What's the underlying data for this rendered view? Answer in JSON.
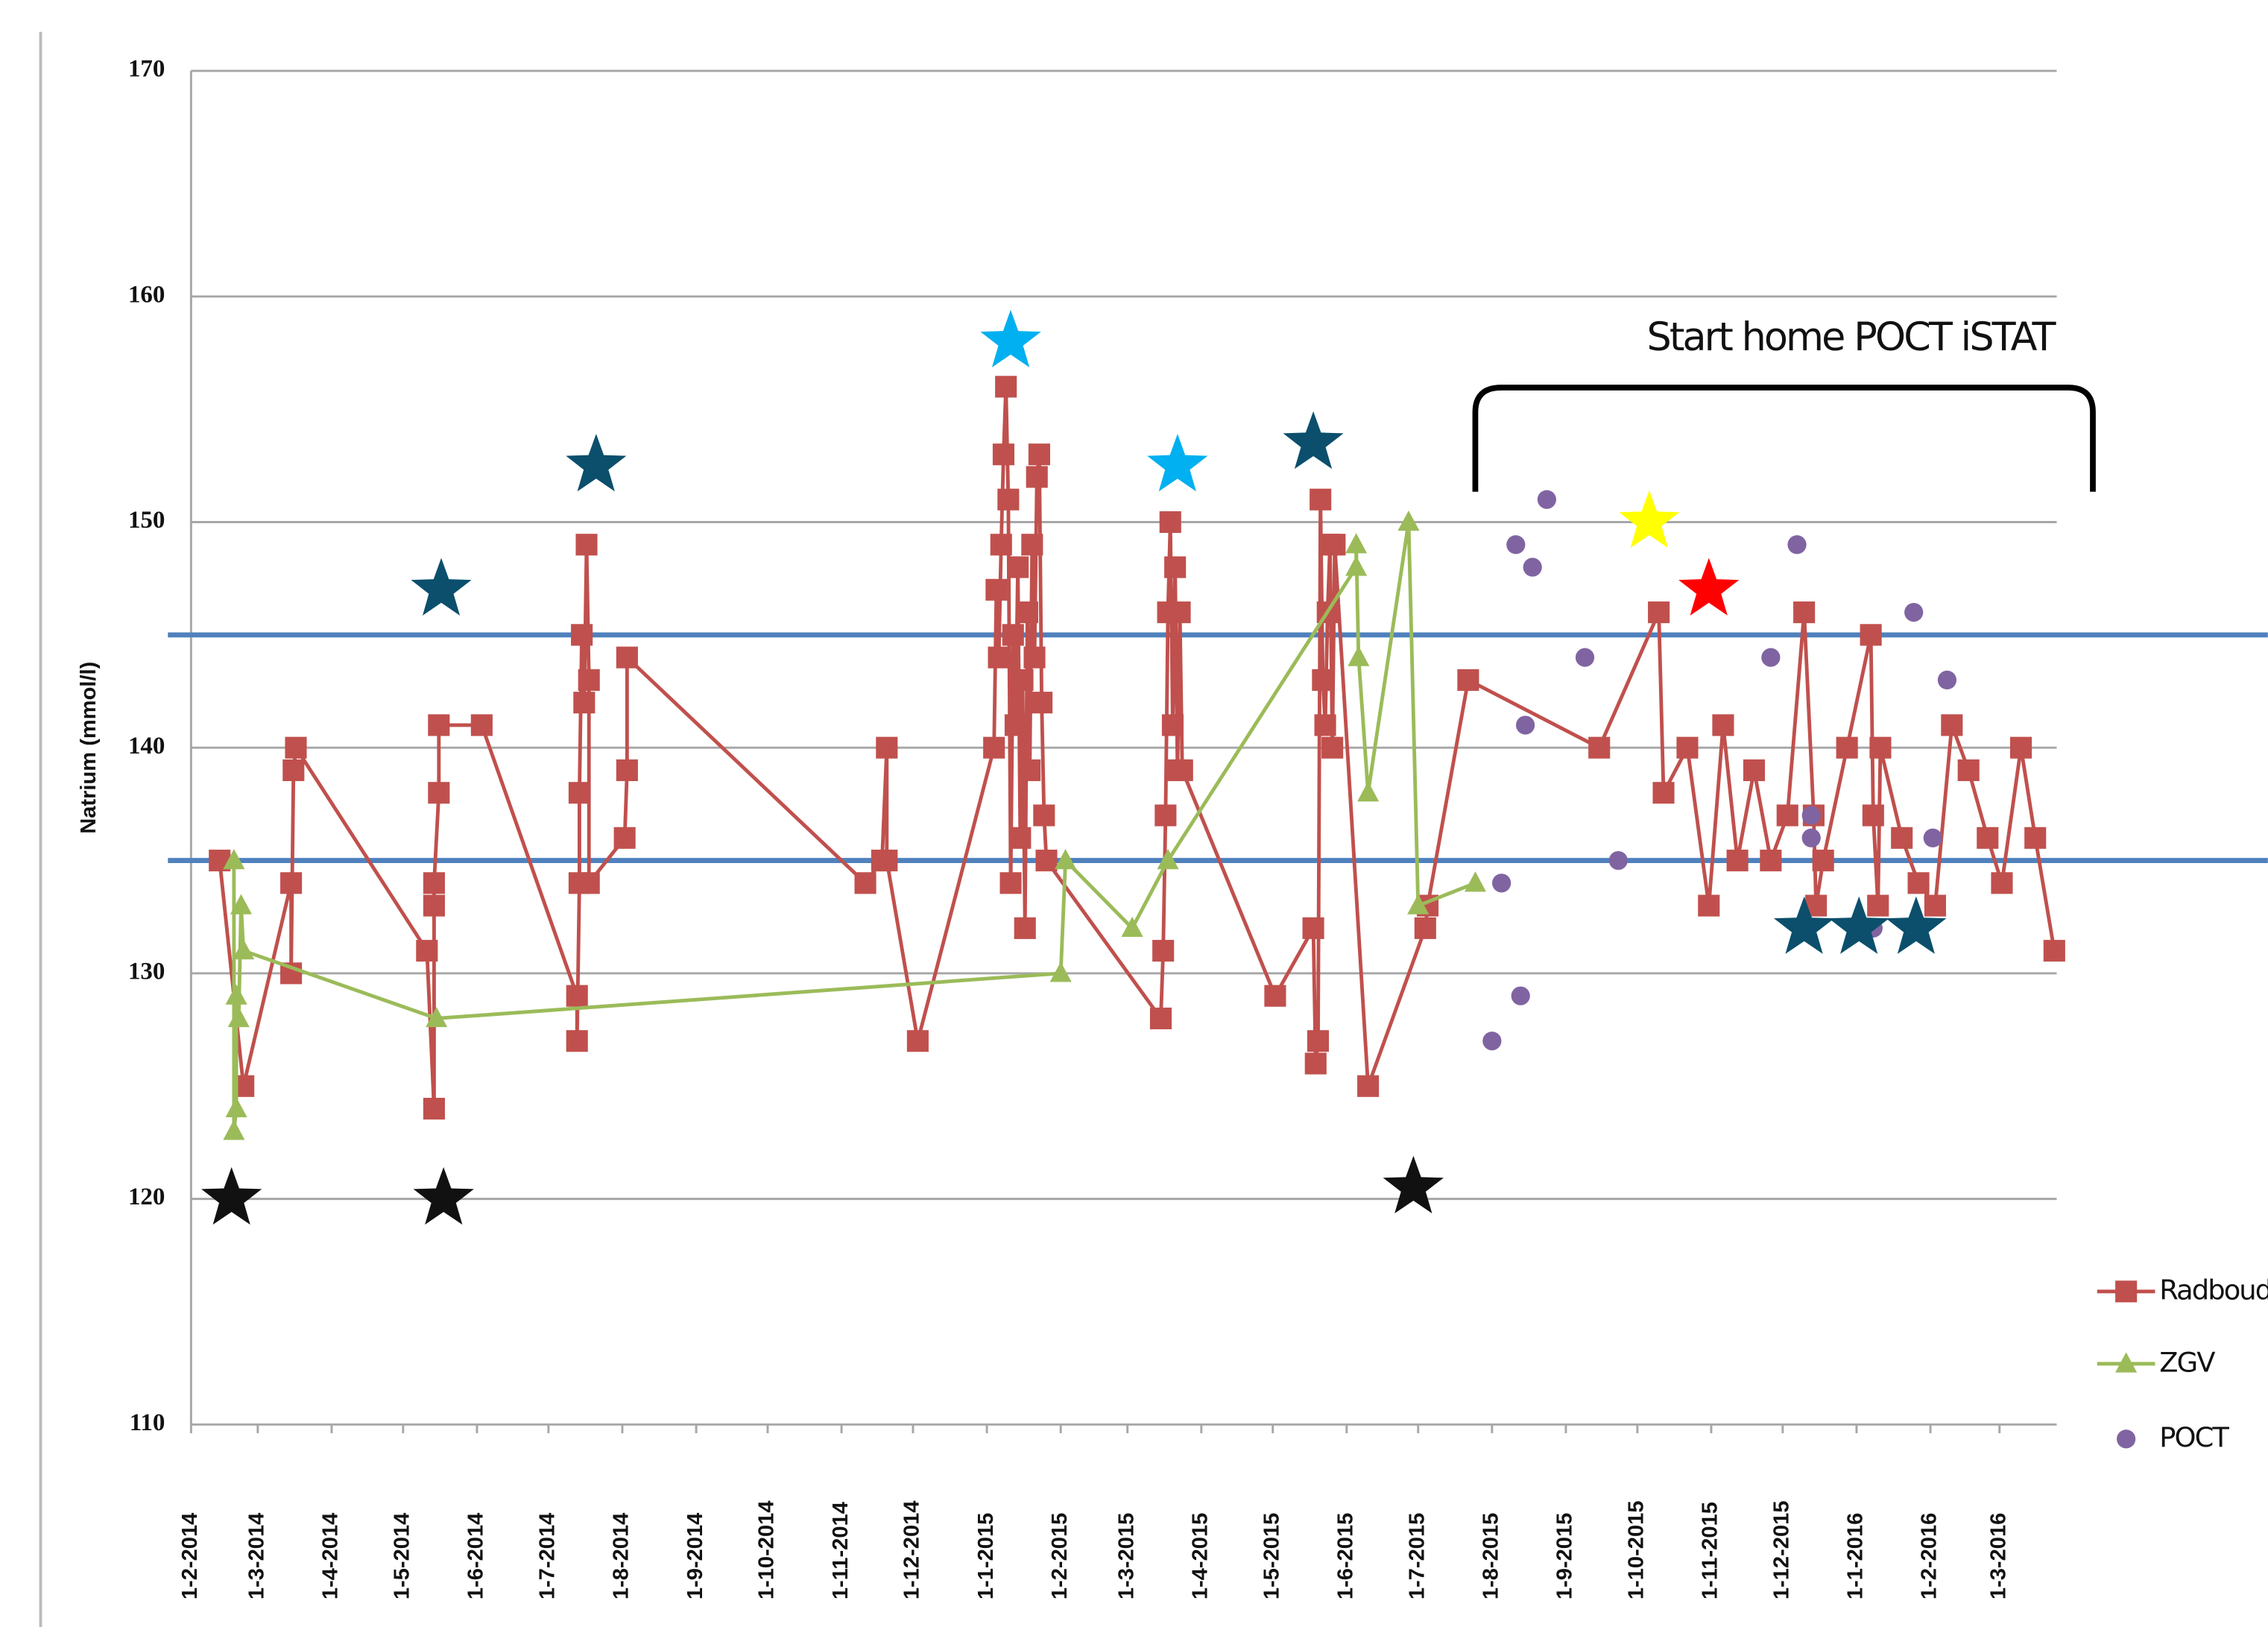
{
  "chart_data": {
    "type": "line",
    "y_label": "Natrium (mmol/l)",
    "annotation": "Start home POCT iSTAT",
    "xlim": [
      "2014-02-01",
      "2016-03-25"
    ],
    "xticks": [
      {
        "value": "2014-02-01",
        "label": "1-2-2014"
      },
      {
        "value": "2014-03-01",
        "label": "1-3-2014"
      },
      {
        "value": "2014-04-01",
        "label": "1-4-2014"
      },
      {
        "value": "2014-05-01",
        "label": "1-5-2014"
      },
      {
        "value": "2014-06-01",
        "label": "1-6-2014"
      },
      {
        "value": "2014-07-01",
        "label": "1-7-2014"
      },
      {
        "value": "2014-08-01",
        "label": "1-8-2014"
      },
      {
        "value": "2014-09-01",
        "label": "1-9-2014"
      },
      {
        "value": "2014-10-01",
        "label": "1-10-2014"
      },
      {
        "value": "2014-11-01",
        "label": "1-11-2014"
      },
      {
        "value": "2014-12-01",
        "label": "1-12-2014"
      },
      {
        "value": "2015-01-01",
        "label": "1-1-2015"
      },
      {
        "value": "2015-02-01",
        "label": "1-2-2015"
      },
      {
        "value": "2015-03-01",
        "label": "1-3-2015"
      },
      {
        "value": "2015-04-01",
        "label": "1-4-2015"
      },
      {
        "value": "2015-05-01",
        "label": "1-5-2015"
      },
      {
        "value": "2015-06-01",
        "label": "1-6-2015"
      },
      {
        "value": "2015-07-01",
        "label": "1-7-2015"
      },
      {
        "value": "2015-08-01",
        "label": "1-8-2015"
      },
      {
        "value": "2015-09-01",
        "label": "1-9-2015"
      },
      {
        "value": "2015-10-01",
        "label": "1-10-2015"
      },
      {
        "value": "2015-11-01",
        "label": "1-11-2015"
      },
      {
        "value": "2015-12-01",
        "label": "1-12-2015"
      },
      {
        "value": "2016-01-01",
        "label": "1-1-2016"
      },
      {
        "value": "2016-02-01",
        "label": "1-2-2016"
      },
      {
        "value": "2016-03-01",
        "label": "1-3-2016"
      }
    ],
    "ylim": [
      110,
      170
    ],
    "yticks": [
      110,
      120,
      130,
      140,
      150,
      160,
      170
    ],
    "grid": true,
    "legend": "bottom-right",
    "reference_lines": [
      145,
      135
    ],
    "reference_color": "#4f81bd",
    "series": [
      {
        "name": "Radboud",
        "color": "#c0504d",
        "marker": "square",
        "line": true,
        "x": [
          "2014-02-13",
          "2014-02-23",
          "2014-03-15",
          "2014-03-15",
          "2014-03-16",
          "2014-03-17",
          "2014-05-11",
          "2014-05-14",
          "2014-05-14",
          "2014-05-14",
          "2014-05-16",
          "2014-05-16",
          "2014-06-03",
          "2014-07-13",
          "2014-07-13",
          "2014-07-14",
          "2014-07-14",
          "2014-07-15",
          "2014-07-16",
          "2014-07-17",
          "2014-07-18",
          "2014-07-18",
          "2014-08-02",
          "2014-08-03",
          "2014-08-03",
          "2014-11-11",
          "2014-11-18",
          "2014-11-20",
          "2014-11-20",
          "2014-12-03",
          "2015-01-04",
          "2015-01-05",
          "2015-01-06",
          "2015-01-07",
          "2015-01-08",
          "2015-01-09",
          "2015-01-10",
          "2015-01-11",
          "2015-01-12",
          "2015-01-13",
          "2015-01-14",
          "2015-01-15",
          "2015-01-16",
          "2015-01-17",
          "2015-01-18",
          "2015-01-19",
          "2015-01-20",
          "2015-01-21",
          "2015-01-22",
          "2015-01-23",
          "2015-01-24",
          "2015-01-25",
          "2015-01-26",
          "2015-03-15",
          "2015-03-16",
          "2015-03-17",
          "2015-03-18",
          "2015-03-19",
          "2015-03-20",
          "2015-03-21",
          "2015-03-22",
          "2015-03-23",
          "2015-03-24",
          "2015-05-02",
          "2015-05-18",
          "2015-05-19",
          "2015-05-20",
          "2015-05-21",
          "2015-05-22",
          "2015-05-23",
          "2015-05-24",
          "2015-05-25",
          "2015-05-26",
          "2015-05-27",
          "2015-06-10",
          "2015-07-04",
          "2015-07-05",
          "2015-07-22",
          "2015-09-15",
          "2015-10-10",
          "2015-10-12",
          "2015-10-22",
          "2015-10-31",
          "2015-11-06",
          "2015-11-12",
          "2015-11-19",
          "2015-11-26",
          "2015-12-03",
          "2015-12-10",
          "2015-12-14",
          "2015-12-15",
          "2015-12-18",
          "2015-12-28",
          "2016-01-07",
          "2016-01-08",
          "2016-01-10",
          "2016-01-11",
          "2016-01-20",
          "2016-01-27",
          "2016-02-03",
          "2016-02-10",
          "2016-02-17",
          "2016-02-25",
          "2016-03-02",
          "2016-03-10",
          "2016-03-16",
          "2016-03-24"
        ],
        "values": [
          135,
          125,
          134,
          130,
          139,
          140,
          131,
          124,
          133,
          134,
          138,
          141,
          141,
          129,
          127,
          134,
          138,
          145,
          142,
          149,
          143,
          134,
          136,
          139,
          144,
          134,
          135,
          140,
          135,
          127,
          140,
          147,
          144,
          149,
          153,
          156,
          151,
          134,
          145,
          141,
          148,
          136,
          143,
          132,
          146,
          139,
          149,
          144,
          152,
          153,
          142,
          137,
          135,
          128,
          131,
          137,
          146,
          150,
          141,
          148,
          139,
          146,
          139,
          129,
          132,
          126,
          127,
          151,
          143,
          141,
          146,
          149,
          140,
          149,
          125,
          132,
          133,
          143,
          140,
          146,
          138,
          140,
          133,
          141,
          135,
          139,
          135,
          137,
          146,
          137,
          133,
          135,
          140,
          145,
          137,
          133,
          140,
          136,
          134,
          133,
          141,
          139,
          136,
          134,
          140,
          136,
          131
        ]
      },
      {
        "name": "ZGV",
        "color": "#9bbb59",
        "marker": "triangle",
        "line": true,
        "x": [
          "2014-02-19",
          "2014-02-19",
          "2014-02-20",
          "2014-02-20",
          "2014-02-21",
          "2014-02-22",
          "2014-02-23",
          "2014-05-15",
          "2015-02-01",
          "2015-02-03",
          "2015-03-03",
          "2015-03-18",
          "2015-06-05",
          "2015-06-05",
          "2015-06-06",
          "2015-06-10",
          "2015-06-27",
          "2015-07-01",
          "2015-07-25"
        ],
        "values": [
          135,
          123,
          124,
          129,
          128,
          133,
          131,
          128,
          130,
          135,
          132,
          135,
          148,
          149,
          144,
          138,
          150,
          133,
          134
        ]
      },
      {
        "name": "POCT",
        "color": "#8064a2",
        "marker": "circle",
        "line": false,
        "x": [
          "2015-08-01",
          "2015-08-05",
          "2015-08-11",
          "2015-08-13",
          "2015-08-15",
          "2015-08-18",
          "2015-08-24",
          "2015-09-09",
          "2015-09-23",
          "2015-11-26",
          "2015-12-07",
          "2015-12-13",
          "2015-12-13",
          "2016-01-08",
          "2016-01-25",
          "2016-02-02",
          "2016-02-08"
        ],
        "values": [
          127,
          134,
          149,
          129,
          141,
          148,
          151,
          144,
          135,
          144,
          149,
          137,
          136,
          132,
          146,
          136,
          143
        ]
      }
    ],
    "stars": {
      "x": [
        "2014-02-18",
        "2014-05-17",
        "2014-05-18",
        "2014-07-21",
        "2015-01-11",
        "2015-03-22",
        "2015-05-18",
        "2015-06-29",
        "2015-10-06",
        "2015-10-31",
        "2015-12-10",
        "2016-01-02",
        "2016-01-26"
      ],
      "y": [
        120,
        147,
        120,
        152.5,
        158,
        152.5,
        153.5,
        120.5,
        150,
        147,
        132,
        132,
        132
      ],
      "colors": [
        "#111111",
        "#0b4f6c",
        "#111111",
        "#0b4f6c",
        "#00b0f0",
        "#00b0f0",
        "#0b4f6c",
        "#111111",
        "#ffff00",
        "#ff0000",
        "#0b4f6c",
        "#0b4f6c",
        "#0b4f6c"
      ]
    }
  }
}
